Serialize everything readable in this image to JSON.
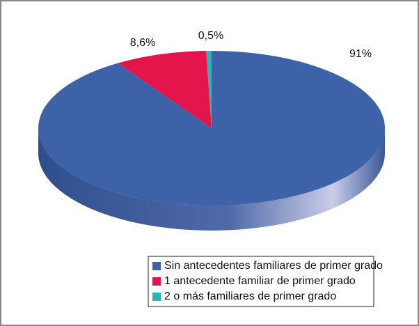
{
  "chart_data": {
    "type": "pie",
    "categories": [
      "Sin antecedentes familiares de primer grado",
      "1 antecedente familiar de primer grado",
      "2 o más familiares de primer grado"
    ],
    "values": [
      91,
      8.6,
      0.5
    ],
    "value_labels": [
      "91%",
      "8,6%",
      "0,5%"
    ],
    "colors": [
      "#3d62a8",
      "#e3154a",
      "#2bb3b8"
    ]
  }
}
